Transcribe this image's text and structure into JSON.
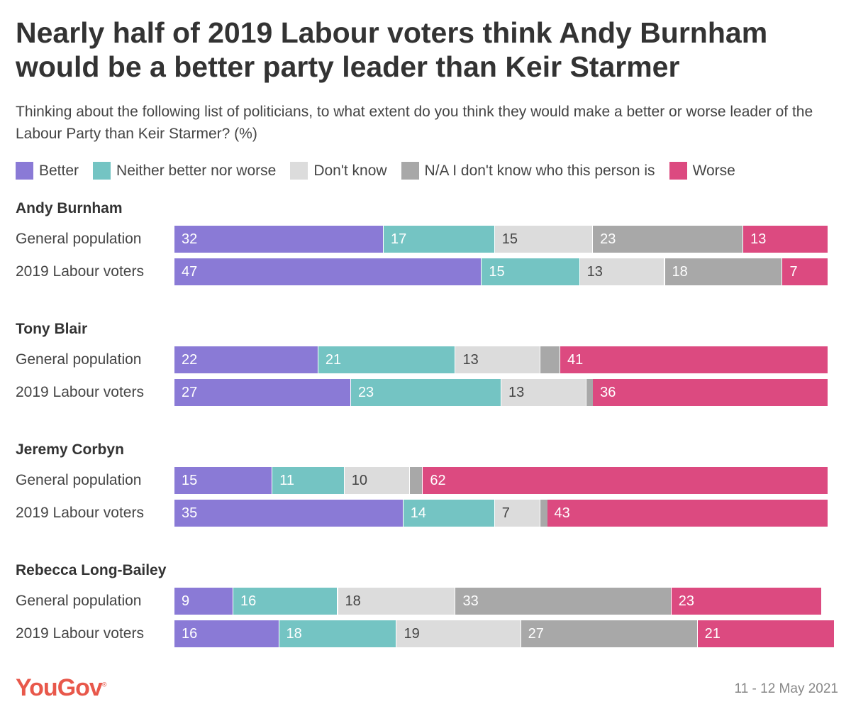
{
  "chart_data": {
    "type": "bar",
    "stacked": true,
    "orientation": "horizontal",
    "title": "Nearly half of 2019 Labour voters think Andy Burnham would be a better party leader than Keir Starmer",
    "subtitle": "Thinking about the following list of politicians, to what extent do you think they would make a better or worse leader of the Labour Party than Keir Starmer? (%)",
    "series": [
      {
        "name": "Better",
        "color": "#8a7ad6"
      },
      {
        "name": "Neither better nor worse",
        "color": "#74c4c3"
      },
      {
        "name": "Don't know",
        "color": "#dcdcdc"
      },
      {
        "name": "N/A I don't know who this person is",
        "color": "#a8a8a8"
      },
      {
        "name": "Worse",
        "color": "#dc4a80"
      }
    ],
    "groups": [
      {
        "name": "Andy Burnham",
        "rows": [
          {
            "label": "General population",
            "values": [
              32,
              17,
              15,
              23,
              13
            ]
          },
          {
            "label": "2019 Labour voters",
            "values": [
              47,
              15,
              13,
              18,
              7
            ]
          }
        ]
      },
      {
        "name": "Tony Blair",
        "rows": [
          {
            "label": "General population",
            "values": [
              22,
              21,
              13,
              3,
              41
            ]
          },
          {
            "label": "2019 Labour voters",
            "values": [
              27,
              23,
              13,
              1,
              36
            ]
          }
        ]
      },
      {
        "name": "Jeremy Corbyn",
        "rows": [
          {
            "label": "General population",
            "values": [
              15,
              11,
              10,
              2,
              62
            ]
          },
          {
            "label": "2019 Labour voters",
            "values": [
              35,
              14,
              7,
              1,
              43
            ]
          }
        ]
      },
      {
        "name": "Rebecca Long-Bailey",
        "rows": [
          {
            "label": "General population",
            "values": [
              9,
              16,
              18,
              33,
              23
            ]
          },
          {
            "label": "2019 Labour voters",
            "values": [
              16,
              18,
              19,
              27,
              21
            ]
          }
        ]
      }
    ],
    "legend_position": "top"
  },
  "footer": {
    "brand": "YouGov",
    "date": "11 - 12 May 2021"
  }
}
